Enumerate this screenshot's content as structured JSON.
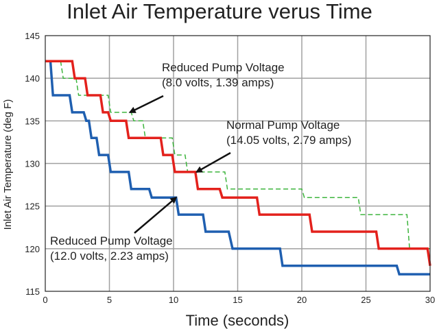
{
  "chart_data": {
    "type": "line",
    "title": "Inlet Air Temperature verus Time",
    "xlabel": "Time (seconds)",
    "ylabel": "Inlet Air Temperature (deg F)",
    "xlim": [
      0,
      30
    ],
    "ylim": [
      115,
      145
    ],
    "x_ticks": [
      0,
      5,
      10,
      15,
      20,
      25,
      30
    ],
    "y_ticks": [
      115,
      120,
      125,
      130,
      135,
      140,
      145
    ],
    "grid": true,
    "series": [
      {
        "color": "#1f5fb0",
        "style": "solid",
        "x": [
          0,
          0.4,
          0.6,
          1.9,
          2.1,
          3.0,
          3.2,
          3.4,
          3.6,
          4.0,
          4.2,
          4.6,
          4.8,
          4.9,
          5.1,
          6.5,
          6.7,
          8.1,
          8.3,
          9.9,
          10.2,
          10.4,
          12.3,
          12.5,
          14.3,
          14.6,
          18.3,
          18.5,
          27.4,
          27.6,
          30
        ],
        "y": [
          142,
          142,
          138,
          138,
          136,
          136,
          135,
          135,
          133,
          133,
          131,
          131,
          131,
          131,
          129,
          129,
          127,
          127,
          126,
          126,
          126,
          124,
          124,
          122,
          122,
          120,
          120,
          118,
          118,
          117,
          117
        ]
      },
      {
        "color": "#e3211c",
        "style": "solid",
        "x": [
          0,
          2.1,
          2.3,
          3.1,
          3.3,
          4.3,
          4.5,
          4.9,
          5.1,
          6.3,
          6.5,
          9.0,
          9.2,
          9.9,
          10.1,
          11.7,
          11.9,
          13.6,
          13.8,
          16.5,
          16.7,
          20.6,
          20.8,
          25.8,
          26.0,
          29.8,
          30
        ],
        "y": [
          142,
          142,
          140,
          140,
          138,
          138,
          136,
          136,
          135,
          135,
          133,
          133,
          131,
          131,
          129,
          129,
          127,
          127,
          126,
          126,
          124,
          124,
          122,
          122,
          120,
          120,
          118
        ]
      },
      {
        "color": "#3cb43c",
        "style": "dashed",
        "x": [
          0,
          1.2,
          1.4,
          2.4,
          2.6,
          4.9,
          5.1,
          6.7,
          6.9,
          7.6,
          7.8,
          9.9,
          10.1,
          10.9,
          11.1,
          12.4,
          12.6,
          14.0,
          14.2,
          20.0,
          20.2,
          24.4,
          24.6,
          28.2,
          28.4,
          30
        ],
        "y": [
          142,
          142,
          140,
          140,
          138,
          138,
          136,
          136,
          135,
          135,
          133,
          133,
          131,
          131,
          129,
          129,
          129,
          129,
          127,
          127,
          126,
          126,
          124,
          124,
          120,
          120
        ]
      }
    ],
    "annotations": [
      {
        "lines": [
          "Reduced Pump Voltage",
          "(8.0 volts, 1.39 amps)"
        ],
        "arrow_to": [
          6.6,
          136
        ]
      },
      {
        "lines": [
          "Normal Pump Voltage",
          "(14.05 volts, 2.79 amps)"
        ],
        "arrow_to": [
          11.8,
          129
        ]
      },
      {
        "lines": [
          "Reduced Pump Voltage",
          "(12.0 volts, 2.23 amps)"
        ],
        "arrow_to": [
          10.2,
          126
        ]
      }
    ]
  }
}
